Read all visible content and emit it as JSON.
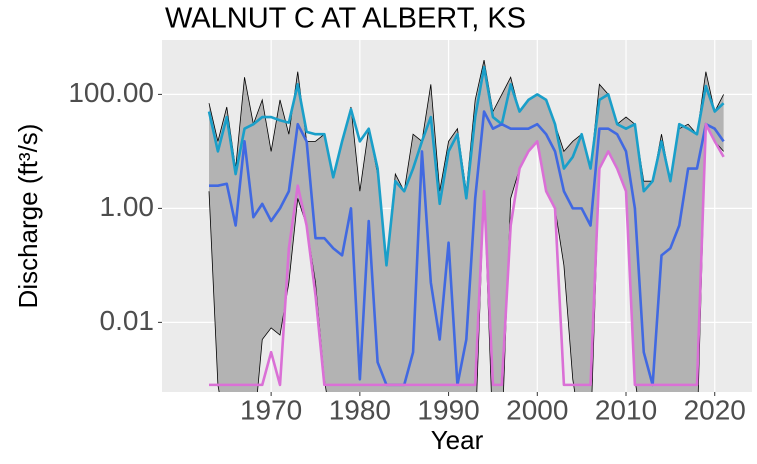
{
  "chart_data": {
    "type": "ribbon-line",
    "title": "WALNUT C AT ALBERT, KS",
    "xlabel": "Year",
    "ylabel": "Discharge (ft³/s)",
    "log_y": true,
    "grid": true,
    "xlim": [
      1957.7,
      2024.2
    ],
    "xticks": [
      1970,
      1980,
      1990,
      2000,
      2010,
      2020
    ],
    "ylim": [
      0.0006,
      900
    ],
    "yticks": [
      0.01,
      {
        "value": 1,
        "label": "1.00"
      },
      {
        "value": 100,
        "label": "100.00"
      }
    ],
    "x": [
      1963,
      1964,
      1965,
      1966,
      1967,
      1968,
      1969,
      1970,
      1971,
      1972,
      1973,
      1974,
      1975,
      1976,
      1977,
      1978,
      1979,
      1980,
      1981,
      1982,
      1983,
      1984,
      1985,
      1986,
      1987,
      1988,
      1989,
      1990,
      1991,
      1992,
      1993,
      1994,
      1995,
      1996,
      1997,
      1998,
      1999,
      2000,
      2001,
      2002,
      2003,
      2004,
      2005,
      2006,
      2007,
      2008,
      2009,
      2010,
      2011,
      2012,
      2013,
      2014,
      2015,
      2016,
      2017,
      2018,
      2019,
      2020,
      2021
    ],
    "ribbon": {
      "color": "#b3b3b3",
      "upper": [
        70,
        15,
        60,
        5,
        200,
        30,
        80,
        10,
        80,
        20,
        250,
        15,
        15,
        20,
        3.5,
        15,
        60,
        2,
        25,
        4,
        0.1,
        4,
        2,
        20,
        15,
        150,
        2,
        15,
        25,
        2,
        80,
        400,
        50,
        100,
        200,
        50,
        80,
        100,
        80,
        30,
        10,
        15,
        20,
        5,
        150,
        100,
        30,
        40,
        30,
        3,
        3,
        20,
        3,
        25,
        30,
        20,
        250,
        50,
        100
      ],
      "lower": [
        2,
        0.0008,
        0.0001,
        0.0001,
        0.0001,
        0.0001,
        0.005,
        0.008,
        0.006,
        0.05,
        1.5,
        0.5,
        0.05,
        0.001,
        0.0001,
        0.0001,
        0.0001,
        0.0001,
        0.0001,
        0.0001,
        0.0001,
        0.0001,
        0.0001,
        0.0001,
        0.0001,
        0.0001,
        0.0001,
        0.0001,
        0.0001,
        0.0001,
        0.0001,
        2,
        0.0001,
        0.0001,
        1.5,
        5,
        10,
        15,
        2,
        1,
        0.1,
        0.001,
        0.0001,
        0.0001,
        5,
        10,
        5,
        2,
        0.001,
        0.0001,
        0.0001,
        0.0001,
        0.0001,
        0.0001,
        0.0001,
        0.0001,
        30,
        15,
        10
      ]
    },
    "series": [
      {
        "color": "#1a9fc9",
        "values": [
          50,
          10,
          40,
          4,
          25,
          30,
          40,
          40,
          35,
          32,
          150,
          22,
          20,
          20,
          3.5,
          15,
          55,
          15,
          25,
          5,
          0.1,
          3,
          2,
          5,
          15,
          40,
          1.2,
          10,
          20,
          1.5,
          40,
          300,
          40,
          30,
          150,
          50,
          80,
          100,
          80,
          30,
          5,
          8,
          20,
          5,
          80,
          100,
          30,
          25,
          30,
          2,
          3,
          15,
          3,
          30,
          25,
          20,
          140,
          50,
          70
        ]
      },
      {
        "color": "#4169e1",
        "values": [
          2.5,
          2.5,
          2.7,
          0.5,
          15,
          0.7,
          1.2,
          0.6,
          1,
          2,
          30,
          15,
          0.3,
          0.3,
          0.2,
          0.15,
          1,
          0.001,
          0.6,
          0.002,
          0.0008,
          0.0008,
          0.0008,
          0.003,
          10,
          0.05,
          0.005,
          0.25,
          0.0008,
          0.005,
          1.5,
          50,
          25,
          30,
          25,
          25,
          25,
          30,
          20,
          10,
          2,
          1,
          1,
          0.5,
          25,
          25,
          20,
          10,
          1,
          0.003,
          0.0008,
          0.15,
          0.2,
          0.5,
          5,
          5,
          30,
          25,
          15
        ]
      },
      {
        "color": "#da70d6",
        "values": [
          0.0008,
          0.0008,
          0.0008,
          0.0008,
          0.0008,
          0.0008,
          0.0008,
          0.003,
          0.0008,
          0.2,
          2.5,
          0.5,
          0.03,
          0.0008,
          0.0008,
          0.0008,
          0.0008,
          0.0008,
          0.0008,
          0.0008,
          0.0008,
          0.0008,
          0.0008,
          0.0008,
          0.0008,
          0.0008,
          0.0008,
          0.0008,
          0.0008,
          0.0008,
          0.0008,
          2,
          0.0008,
          0.0008,
          0.5,
          5,
          10,
          15,
          2,
          1,
          0.0008,
          0.0008,
          0.0008,
          0.0008,
          5,
          10,
          5,
          2,
          0.0008,
          0.0008,
          0.0008,
          0.0008,
          0.0008,
          0.0008,
          0.0008,
          0.0008,
          30,
          15,
          8
        ]
      }
    ]
  }
}
